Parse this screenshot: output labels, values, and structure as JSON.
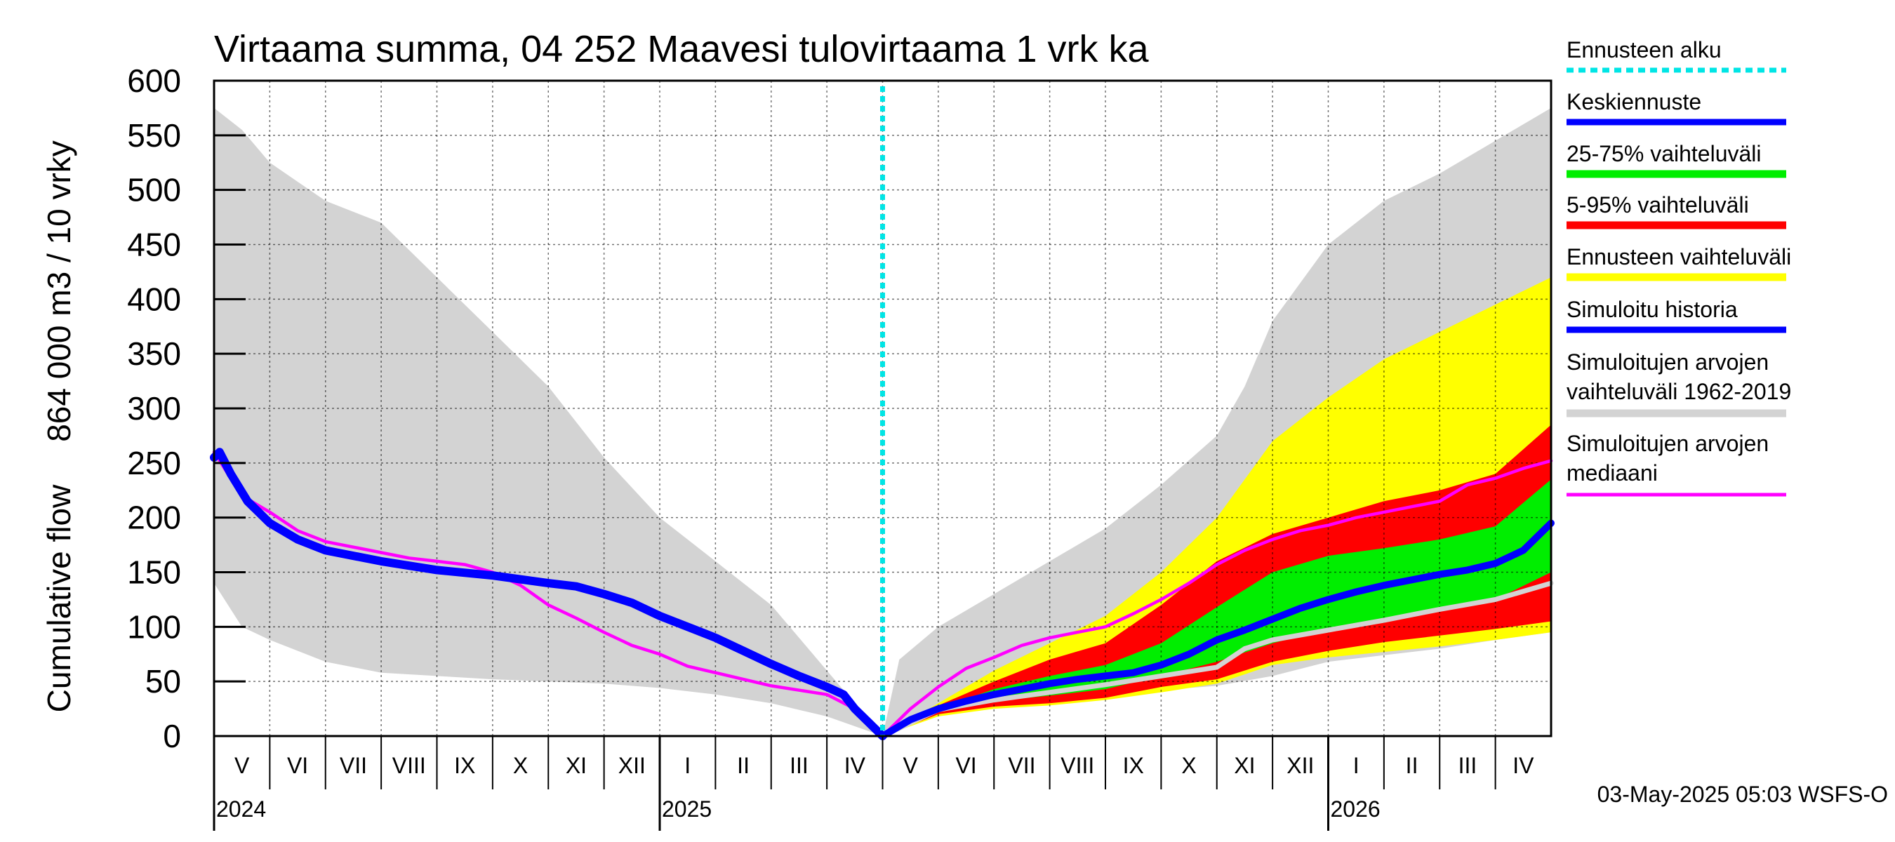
{
  "chart_data": {
    "type": "area",
    "title": "Virtaama summa, 04 252 Maavesi tulovirtaama 1 vrk ka",
    "ylabel_lines": [
      "864 000 m3 / 10 vrky",
      "Cumulative flow"
    ],
    "ylim": [
      0,
      600
    ],
    "y_ticks": [
      0,
      50,
      100,
      150,
      200,
      250,
      300,
      350,
      400,
      450,
      500,
      550,
      600
    ],
    "x_range_months": [
      0,
      24
    ],
    "forecast_start_month": 12,
    "grid": true,
    "months": [
      "V",
      "VI",
      "VII",
      "VIII",
      "IX",
      "X",
      "XI",
      "XII",
      "I",
      "II",
      "III",
      "IV",
      "V",
      "VI",
      "VII",
      "VIII",
      "IX",
      "X",
      "XI",
      "XII",
      "I",
      "II",
      "III",
      "IV"
    ],
    "years": [
      {
        "label": "2024",
        "month_index": 0
      },
      {
        "label": "2025",
        "month_index": 8
      },
      {
        "label": "2026",
        "month_index": 20
      }
    ],
    "legend": [
      {
        "label_lines": [
          "Ennusteen alku"
        ],
        "color": "#00e5e5",
        "style": "dotted",
        "key": "forecast_start"
      },
      {
        "label_lines": [
          "Keskiennuste"
        ],
        "color": "#0000ff",
        "style": "solid",
        "key": "mean_forecast"
      },
      {
        "label_lines": [
          "25-75% vaihteluväli"
        ],
        "color": "#00ee00",
        "style": "solid",
        "key": "band_25_75"
      },
      {
        "label_lines": [
          "5-95% vaihteluväli"
        ],
        "color": "#ff0000",
        "style": "solid",
        "key": "band_5_95"
      },
      {
        "label_lines": [
          "Ennusteen vaihteluväli"
        ],
        "color": "#ffff00",
        "style": "solid",
        "key": "forecast_range"
      },
      {
        "label_lines": [
          "Simuloitu historia"
        ],
        "color": "#0000ff",
        "style": "solid",
        "key": "simulated_history"
      },
      {
        "label_lines": [
          "Simuloitujen arvojen",
          "vaihteluväli 1962-2019"
        ],
        "color": "#d3d3d3",
        "style": "solid",
        "key": "hist_range"
      },
      {
        "label_lines": [
          "Simuloitujen arvojen",
          "mediaani"
        ],
        "color": "#ff00ff",
        "style": "solid",
        "key": "hist_median"
      }
    ],
    "series": {
      "hist_range_before": {
        "upper": [
          [
            0,
            575
          ],
          [
            0.5,
            555
          ],
          [
            1,
            525
          ],
          [
            2,
            490
          ],
          [
            3,
            470
          ],
          [
            4,
            420
          ],
          [
            5,
            370
          ],
          [
            6,
            320
          ],
          [
            7,
            255
          ],
          [
            8,
            200
          ],
          [
            9,
            160
          ],
          [
            10,
            120
          ],
          [
            11,
            60
          ],
          [
            12,
            0
          ]
        ],
        "lower": [
          [
            0,
            140
          ],
          [
            0.5,
            100
          ],
          [
            1,
            88
          ],
          [
            2,
            68
          ],
          [
            3,
            58
          ],
          [
            4,
            55
          ],
          [
            5,
            52
          ],
          [
            6,
            50
          ],
          [
            7,
            48
          ],
          [
            8,
            44
          ],
          [
            9,
            38
          ],
          [
            10,
            30
          ],
          [
            11,
            18
          ],
          [
            12,
            0
          ]
        ]
      },
      "hist_range_after": {
        "upper": [
          [
            12,
            0
          ],
          [
            12.3,
            70
          ],
          [
            13,
            100
          ],
          [
            14,
            130
          ],
          [
            15,
            160
          ],
          [
            16,
            190
          ],
          [
            17,
            230
          ],
          [
            18,
            275
          ],
          [
            18.5,
            320
          ],
          [
            19,
            380
          ],
          [
            20,
            450
          ],
          [
            21,
            490
          ],
          [
            22,
            515
          ],
          [
            23,
            545
          ],
          [
            24,
            575
          ]
        ],
        "lower": [
          [
            12,
            0
          ],
          [
            12.5,
            12
          ],
          [
            13,
            22
          ],
          [
            14,
            30
          ],
          [
            15,
            34
          ],
          [
            16,
            38
          ],
          [
            17,
            42
          ],
          [
            18,
            46
          ],
          [
            19,
            55
          ],
          [
            20,
            68
          ],
          [
            21,
            74
          ],
          [
            22,
            80
          ],
          [
            23,
            88
          ],
          [
            24,
            95
          ]
        ]
      },
      "forecast_range": {
        "upper": [
          [
            12,
            0
          ],
          [
            13,
            30
          ],
          [
            14,
            60
          ],
          [
            15,
            85
          ],
          [
            16,
            110
          ],
          [
            17,
            150
          ],
          [
            18,
            200
          ],
          [
            19,
            270
          ],
          [
            20,
            310
          ],
          [
            21,
            345
          ],
          [
            22,
            370
          ],
          [
            23,
            395
          ],
          [
            24,
            420
          ]
        ],
        "lower": [
          [
            12,
            0
          ],
          [
            13,
            18
          ],
          [
            14,
            25
          ],
          [
            15,
            28
          ],
          [
            16,
            33
          ],
          [
            17,
            40
          ],
          [
            18,
            48
          ],
          [
            19,
            65
          ],
          [
            20,
            72
          ],
          [
            21,
            77
          ],
          [
            22,
            82
          ],
          [
            23,
            88
          ],
          [
            24,
            95
          ]
        ]
      },
      "band_5_95": {
        "upper": [
          [
            12,
            0
          ],
          [
            13,
            28
          ],
          [
            14,
            50
          ],
          [
            15,
            70
          ],
          [
            16,
            85
          ],
          [
            17,
            120
          ],
          [
            18,
            160
          ],
          [
            19,
            185
          ],
          [
            20,
            200
          ],
          [
            21,
            215
          ],
          [
            22,
            225
          ],
          [
            23,
            240
          ],
          [
            24,
            285
          ]
        ],
        "lower": [
          [
            12,
            0
          ],
          [
            13,
            20
          ],
          [
            14,
            27
          ],
          [
            15,
            30
          ],
          [
            16,
            35
          ],
          [
            17,
            45
          ],
          [
            18,
            52
          ],
          [
            19,
            68
          ],
          [
            20,
            78
          ],
          [
            21,
            86
          ],
          [
            22,
            92
          ],
          [
            23,
            98
          ],
          [
            24,
            105
          ]
        ]
      },
      "band_25_75": {
        "upper": [
          [
            12,
            0
          ],
          [
            13,
            25
          ],
          [
            14,
            43
          ],
          [
            15,
            55
          ],
          [
            16,
            65
          ],
          [
            17,
            85
          ],
          [
            18,
            118
          ],
          [
            19,
            150
          ],
          [
            20,
            165
          ],
          [
            21,
            172
          ],
          [
            22,
            180
          ],
          [
            23,
            192
          ],
          [
            24,
            235
          ]
        ],
        "lower": [
          [
            12,
            0
          ],
          [
            13,
            22
          ],
          [
            14,
            32
          ],
          [
            15,
            37
          ],
          [
            16,
            43
          ],
          [
            17,
            55
          ],
          [
            18,
            68
          ],
          [
            19,
            85
          ],
          [
            20,
            98
          ],
          [
            21,
            108
          ],
          [
            22,
            115
          ],
          [
            23,
            125
          ],
          [
            24,
            150
          ]
        ]
      },
      "hist_median_after_grey": [
        [
          12,
          0
        ],
        [
          13,
          24
        ],
        [
          14,
          33
        ],
        [
          15,
          40
        ],
        [
          16,
          47
        ],
        [
          17,
          55
        ],
        [
          18,
          63
        ],
        [
          18.5,
          80
        ],
        [
          19,
          88
        ],
        [
          20,
          97
        ],
        [
          21,
          106
        ],
        [
          22,
          116
        ],
        [
          23,
          125
        ],
        [
          24,
          140
        ]
      ],
      "hist_median": [
        [
          0,
          260
        ],
        [
          0.25,
          240
        ],
        [
          0.5,
          220
        ],
        [
          1,
          205
        ],
        [
          1.5,
          188
        ],
        [
          2,
          178
        ],
        [
          3,
          168
        ],
        [
          3.5,
          163
        ],
        [
          4,
          160
        ],
        [
          4.5,
          157
        ],
        [
          5,
          150
        ],
        [
          5.5,
          138
        ],
        [
          6,
          120
        ],
        [
          6.5,
          108
        ],
        [
          7,
          95
        ],
        [
          7.5,
          83
        ],
        [
          8,
          75
        ],
        [
          8.5,
          64
        ],
        [
          9,
          58
        ],
        [
          9.5,
          52
        ],
        [
          10,
          46
        ],
        [
          11,
          38
        ],
        [
          11.5,
          25
        ],
        [
          12,
          0
        ],
        [
          12.5,
          25
        ],
        [
          13,
          45
        ],
        [
          13.5,
          62
        ],
        [
          14,
          72
        ],
        [
          14.5,
          83
        ],
        [
          15,
          90
        ],
        [
          15.5,
          95
        ],
        [
          16,
          100
        ],
        [
          16.5,
          112
        ],
        [
          17,
          125
        ],
        [
          17.5,
          140
        ],
        [
          18,
          157
        ],
        [
          18.5,
          170
        ],
        [
          19,
          180
        ],
        [
          19.5,
          188
        ],
        [
          20,
          193
        ],
        [
          20.5,
          200
        ],
        [
          21,
          205
        ],
        [
          21.5,
          210
        ],
        [
          22,
          215
        ],
        [
          22.5,
          230
        ],
        [
          23,
          236
        ],
        [
          23.5,
          245
        ],
        [
          24,
          252
        ]
      ],
      "simulated_history": [
        [
          0,
          255
        ],
        [
          0.1,
          260
        ],
        [
          0.3,
          240
        ],
        [
          0.6,
          215
        ],
        [
          1,
          195
        ],
        [
          1.5,
          180
        ],
        [
          2,
          170
        ],
        [
          3,
          160
        ],
        [
          4,
          152
        ],
        [
          5,
          147
        ],
        [
          6,
          140
        ],
        [
          6.5,
          137
        ],
        [
          7,
          130
        ],
        [
          7.5,
          122
        ],
        [
          8,
          110
        ],
        [
          8.5,
          100
        ],
        [
          9,
          90
        ],
        [
          9.5,
          78
        ],
        [
          10,
          66
        ],
        [
          10.5,
          55
        ],
        [
          11,
          45
        ],
        [
          11.3,
          38
        ],
        [
          11.5,
          25
        ],
        [
          12,
          0
        ]
      ],
      "mean_forecast": [
        [
          12,
          0
        ],
        [
          12.5,
          15
        ],
        [
          13,
          25
        ],
        [
          13.5,
          32
        ],
        [
          14,
          38
        ],
        [
          14.5,
          43
        ],
        [
          15,
          48
        ],
        [
          15.5,
          52
        ],
        [
          16,
          55
        ],
        [
          16.5,
          58
        ],
        [
          17,
          65
        ],
        [
          17.5,
          75
        ],
        [
          18,
          88
        ],
        [
          18.5,
          97
        ],
        [
          19,
          107
        ],
        [
          19.5,
          117
        ],
        [
          20,
          125
        ],
        [
          20.5,
          132
        ],
        [
          21,
          138
        ],
        [
          21.5,
          143
        ],
        [
          22,
          148
        ],
        [
          22.5,
          152
        ],
        [
          23,
          158
        ],
        [
          23.5,
          170
        ],
        [
          24,
          195
        ]
      ]
    }
  },
  "footer_text": "03-May-2025 05:03 WSFS-O"
}
